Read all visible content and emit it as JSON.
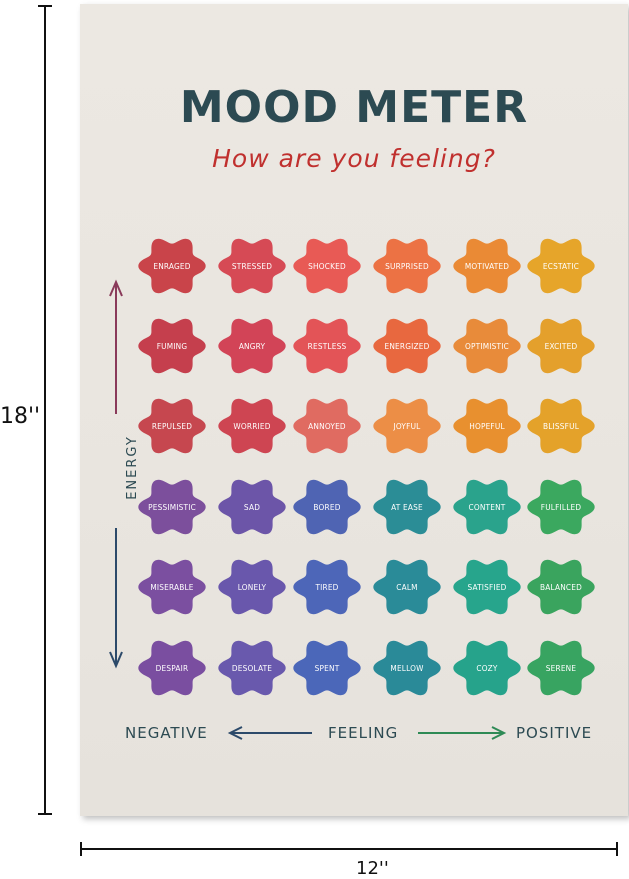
{
  "dimensions": {
    "height_label": "18''",
    "width_label": "12''"
  },
  "poster": {
    "title": "MOOD METER",
    "subtitle": "How are you feeling?",
    "axis": {
      "vertical_label": "ENERGY",
      "negative_label": "NEGATIVE",
      "feeling_label": "FEELING",
      "positive_label": "POSITIVE"
    },
    "moods": [
      [
        "ENRAGED",
        "STRESSED",
        "SHOCKED",
        "SURPRISED",
        "MOTIVATED",
        "ECSTATIC"
      ],
      [
        "FUMING",
        "ANGRY",
        "RESTLESS",
        "ENERGIZED",
        "OPTIMISTIC",
        "EXCITED"
      ],
      [
        "REPULSED",
        "WORRIED",
        "ANNOYED",
        "JOYFUL",
        "HOPEFUL",
        "BLISSFUL"
      ],
      [
        "PESSIMISTIC",
        "SAD",
        "BORED",
        "AT EASE",
        "CONTENT",
        "FULFILLED"
      ],
      [
        "MISERABLE",
        "LONELY",
        "TIRED",
        "CALM",
        "SATISFIED",
        "BALANCED"
      ],
      [
        "DESPAIR",
        "DESOLATE",
        "SPENT",
        "MELLOW",
        "COZY",
        "SERENE"
      ]
    ],
    "colors": [
      [
        "#c9444a",
        "#d64a55",
        "#e85a55",
        "#ec7244",
        "#ea8a35",
        "#e6a52a"
      ],
      [
        "#c53f4d",
        "#d24457",
        "#e35457",
        "#e8683f",
        "#e88b3a",
        "#e4a02c"
      ],
      [
        "#c6474f",
        "#ce4552",
        "#e06b61",
        "#ec8e46",
        "#e8902f",
        "#e4a22a"
      ],
      [
        "#7c4f9c",
        "#6c55a8",
        "#4f64b3",
        "#2b8d96",
        "#2aa38c",
        "#3ba85f"
      ],
      [
        "#7b4fa0",
        "#6957ac",
        "#4d66b8",
        "#2a8b98",
        "#27a58c",
        "#3aa45e"
      ],
      [
        "#7a4ea0",
        "#6959ad",
        "#4b67b9",
        "#2a8a98",
        "#26a38b",
        "#38a461"
      ]
    ],
    "arrow_colors": {
      "energy_up": "#8a3a5a",
      "energy_down": "#2c4a6a",
      "negative": "#2c4a6a",
      "positive": "#2e8a55"
    }
  }
}
